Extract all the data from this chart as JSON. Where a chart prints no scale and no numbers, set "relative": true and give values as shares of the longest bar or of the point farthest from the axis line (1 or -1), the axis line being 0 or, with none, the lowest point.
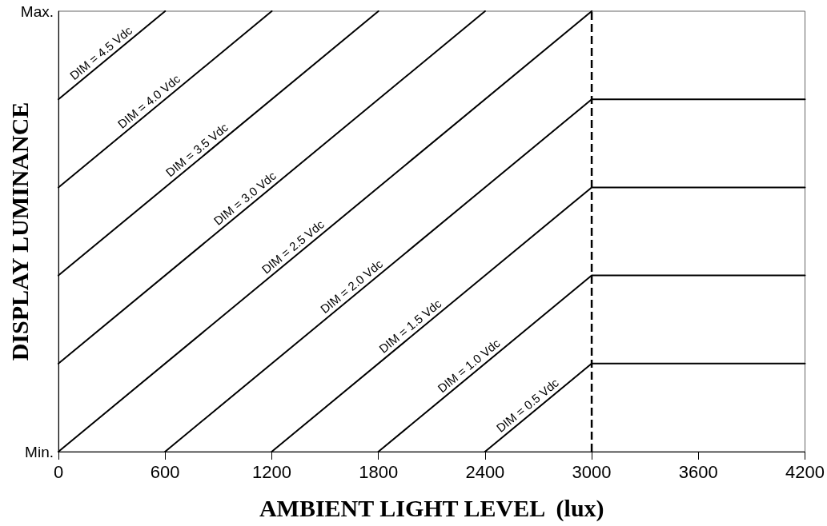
{
  "chart_data": {
    "type": "line",
    "xlabel": "AMBIENT LIGHT LEVEL  (lux)",
    "ylabel": "DISPLAY LUMINANCE",
    "relative": true,
    "xlim": [
      0,
      4200
    ],
    "xticks": [
      0,
      600,
      1200,
      1800,
      2400,
      3000,
      3600,
      4200
    ],
    "grid": false,
    "legend": false,
    "marker": "none",
    "line_style": "solid",
    "series": [
      {
        "name": "DIM = 0.5 Vdc",
        "color": "#000000",
        "x": [
          2400,
          3000,
          4200
        ],
        "values": [
          0,
          0.2,
          0.2
        ]
      },
      {
        "name": "DIM = 1.0 Vdc",
        "color": "#000000",
        "x": [
          1800,
          3000,
          4200
        ],
        "values": [
          0,
          0.4,
          0.4
        ]
      },
      {
        "name": "DIM = 1.5 Vdc",
        "color": "#000000",
        "x": [
          1200,
          3000,
          4200
        ],
        "values": [
          0,
          0.6,
          0.6
        ]
      },
      {
        "name": "DIM = 2.0 Vdc",
        "color": "#000000",
        "x": [
          600,
          3000,
          4200
        ],
        "values": [
          0,
          0.8,
          0.8
        ]
      },
      {
        "name": "DIM = 2.5 Vdc",
        "color": "#000000",
        "x": [
          0,
          3000
        ],
        "values": [
          0,
          1
        ]
      },
      {
        "name": "DIM = 3.0 Vdc",
        "color": "#000000",
        "x": [
          0,
          2400
        ],
        "values": [
          0.2,
          1
        ]
      },
      {
        "name": "DIM = 3.5 Vdc",
        "color": "#000000",
        "x": [
          0,
          1800
        ],
        "values": [
          0.4,
          1
        ]
      },
      {
        "name": "DIM = 4.0 Vdc",
        "color": "#000000",
        "x": [
          0,
          1200
        ],
        "values": [
          0.6,
          1
        ]
      },
      {
        "name": "DIM = 4.5 Vdc",
        "color": "#000000",
        "x": [
          0,
          600
        ],
        "values": [
          0.8,
          1
        ]
      }
    ],
    "ref_lines": [
      {
        "axis": "x",
        "value": 3000,
        "color": "#000000",
        "line_style": "dashed"
      }
    ],
    "annotations": [
      "Min.",
      "Max."
    ]
  }
}
